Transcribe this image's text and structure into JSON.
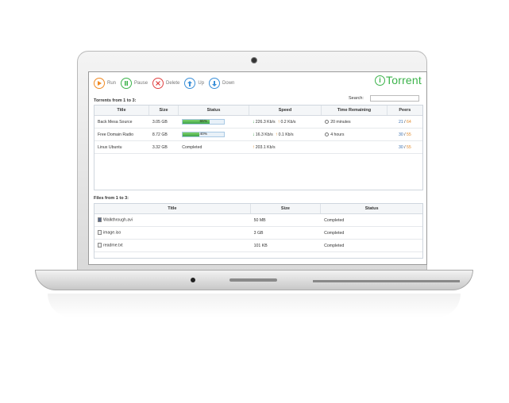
{
  "toolbar": {
    "run_label": "Run",
    "pause_label": "Pause",
    "delete_label": "Delete",
    "up_label": "Up",
    "down_label": "Down"
  },
  "logo": {
    "letter": "i",
    "text": "Torrent"
  },
  "torrents": {
    "heading": "Torrents from 1 to 3:",
    "search_label": "Search:",
    "search_value": "",
    "columns": [
      "Title",
      "Size",
      "Status",
      "Speed",
      "Time Remaining",
      "Peers"
    ],
    "rows": [
      {
        "title": "Back Mesa Source",
        "size": "3.05 GB",
        "status": "65%",
        "progress": 65,
        "down": "226.3 Kb/s",
        "up": "0.2 Kb/s",
        "time": "20 minutes",
        "peers_a": "21",
        "peers_b": "64"
      },
      {
        "title": "Free Domain Radio",
        "size": "8.72 GB",
        "status": "40%",
        "progress": 40,
        "down": "16.3 Kb/s",
        "up": "0.1 Kb/s",
        "time": "4 hours",
        "peers_a": "30",
        "peers_b": "55"
      },
      {
        "title": "Linux Ubuntu",
        "size": "3.32 GB",
        "status": "Completed",
        "progress": 100,
        "down": "",
        "up": "203.1 Kb/s",
        "time": "",
        "peers_a": "30",
        "peers_b": "55"
      }
    ]
  },
  "files": {
    "heading": "Files from 1 to 3:",
    "columns": [
      "Title",
      "Size",
      "Status"
    ],
    "rows": [
      {
        "title": "Walkthrough.avi",
        "size": "50 MB",
        "status": "Completed"
      },
      {
        "title": "image.iso",
        "size": "3 GB",
        "status": "Completed"
      },
      {
        "title": "readme.txt",
        "size": "101 KB",
        "status": "Completed"
      }
    ]
  },
  "colors": {
    "accent_green": "#3bb34a",
    "run_orange": "#f08a24",
    "delete_red": "#e04040",
    "nav_blue": "#3a8fd8"
  },
  "icons": {
    "run": "play-icon",
    "pause": "pause-icon",
    "delete": "close-icon",
    "up": "arrow-up-icon",
    "down": "arrow-down-icon",
    "file": "file-icon",
    "clock": "clock-icon"
  }
}
